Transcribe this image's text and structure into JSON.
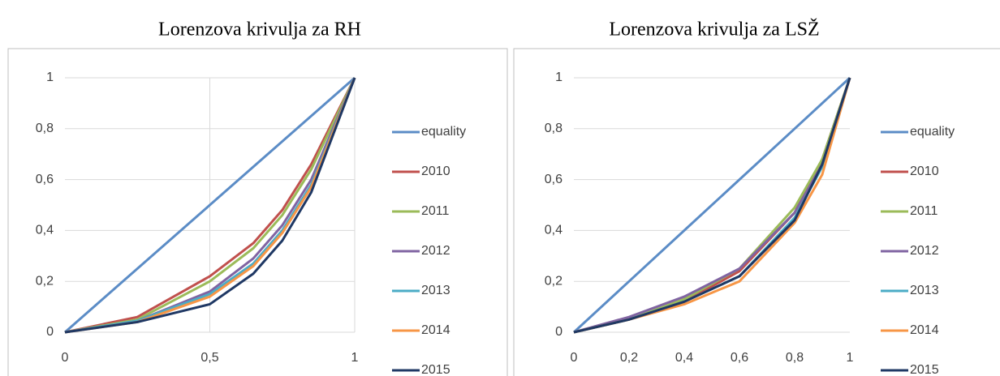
{
  "chart_data": [
    {
      "type": "line",
      "title": "Lorenzova krivulja za RH",
      "x": [
        0,
        0.25,
        0.5,
        0.65,
        0.75,
        0.85,
        1
      ],
      "series": [
        {
          "name": "equality",
          "color": "#5b8cc6",
          "values": [
            0,
            0.25,
            0.5,
            0.65,
            0.75,
            0.85,
            1
          ]
        },
        {
          "name": "2010",
          "color": "#c0504d",
          "values": [
            0,
            0.06,
            0.22,
            0.35,
            0.48,
            0.66,
            1
          ]
        },
        {
          "name": "2011",
          "color": "#9bbb59",
          "values": [
            0,
            0.05,
            0.2,
            0.33,
            0.46,
            0.64,
            1
          ]
        },
        {
          "name": "2012",
          "color": "#8064a2",
          "values": [
            0,
            0.045,
            0.16,
            0.29,
            0.42,
            0.6,
            1
          ]
        },
        {
          "name": "2013",
          "color": "#4bacc6",
          "values": [
            0,
            0.045,
            0.15,
            0.27,
            0.4,
            0.58,
            1
          ]
        },
        {
          "name": "2014",
          "color": "#f79646",
          "values": [
            0,
            0.04,
            0.14,
            0.26,
            0.39,
            0.57,
            1
          ]
        },
        {
          "name": "2015",
          "color": "#1f3864",
          "values": [
            0,
            0.04,
            0.11,
            0.23,
            0.36,
            0.55,
            1
          ]
        }
      ],
      "xlim": [
        0,
        1
      ],
      "xticks": [
        0,
        {
          "value": 0.5,
          "label": "0,5"
        },
        1
      ],
      "ylim": [
        0,
        1
      ],
      "yticks": [
        0,
        {
          "value": 0.2,
          "label": "0,2"
        },
        {
          "value": 0.4,
          "label": "0,4"
        },
        {
          "value": 0.6,
          "label": "0,6"
        },
        {
          "value": 0.8,
          "label": "0,8"
        },
        1
      ],
      "grid": true,
      "xgrid": true,
      "legend": "right"
    },
    {
      "type": "line",
      "title": "Lorenzova krivulja za LSŽ",
      "x": [
        0,
        0.2,
        0.4,
        0.6,
        0.8,
        0.9,
        1
      ],
      "series": [
        {
          "name": "equality",
          "color": "#5b8cc6",
          "values": [
            0,
            0.2,
            0.4,
            0.6,
            0.8,
            0.9,
            1
          ]
        },
        {
          "name": "2010",
          "color": "#c0504d",
          "values": [
            0,
            0.05,
            0.12,
            0.24,
            0.47,
            0.68,
            1
          ]
        },
        {
          "name": "2011",
          "color": "#9bbb59",
          "values": [
            0,
            0.05,
            0.13,
            0.25,
            0.49,
            0.68,
            1
          ]
        },
        {
          "name": "2012",
          "color": "#8064a2",
          "values": [
            0,
            0.06,
            0.14,
            0.25,
            0.47,
            0.66,
            1
          ]
        },
        {
          "name": "2013",
          "color": "#4bacc6",
          "values": [
            0,
            0.05,
            0.12,
            0.22,
            0.45,
            0.65,
            1
          ]
        },
        {
          "name": "2014",
          "color": "#f79646",
          "values": [
            0,
            0.05,
            0.11,
            0.2,
            0.43,
            0.62,
            1
          ]
        },
        {
          "name": "2015",
          "color": "#1f3864",
          "values": [
            0,
            0.05,
            0.12,
            0.22,
            0.44,
            0.66,
            1
          ]
        }
      ],
      "xlim": [
        0,
        1
      ],
      "xticks": [
        0,
        {
          "value": 0.2,
          "label": "0,2"
        },
        {
          "value": 0.4,
          "label": "0,4"
        },
        {
          "value": 0.6,
          "label": "0,6"
        },
        {
          "value": 0.8,
          "label": "0,8"
        },
        1
      ],
      "ylim": [
        0,
        1
      ],
      "yticks": [
        0,
        {
          "value": 0.2,
          "label": "0,2"
        },
        {
          "value": 0.4,
          "label": "0,4"
        },
        {
          "value": 0.6,
          "label": "0,6"
        },
        {
          "value": 0.8,
          "label": "0,8"
        },
        1
      ],
      "grid": true,
      "xgrid": false,
      "legend": "right"
    }
  ]
}
